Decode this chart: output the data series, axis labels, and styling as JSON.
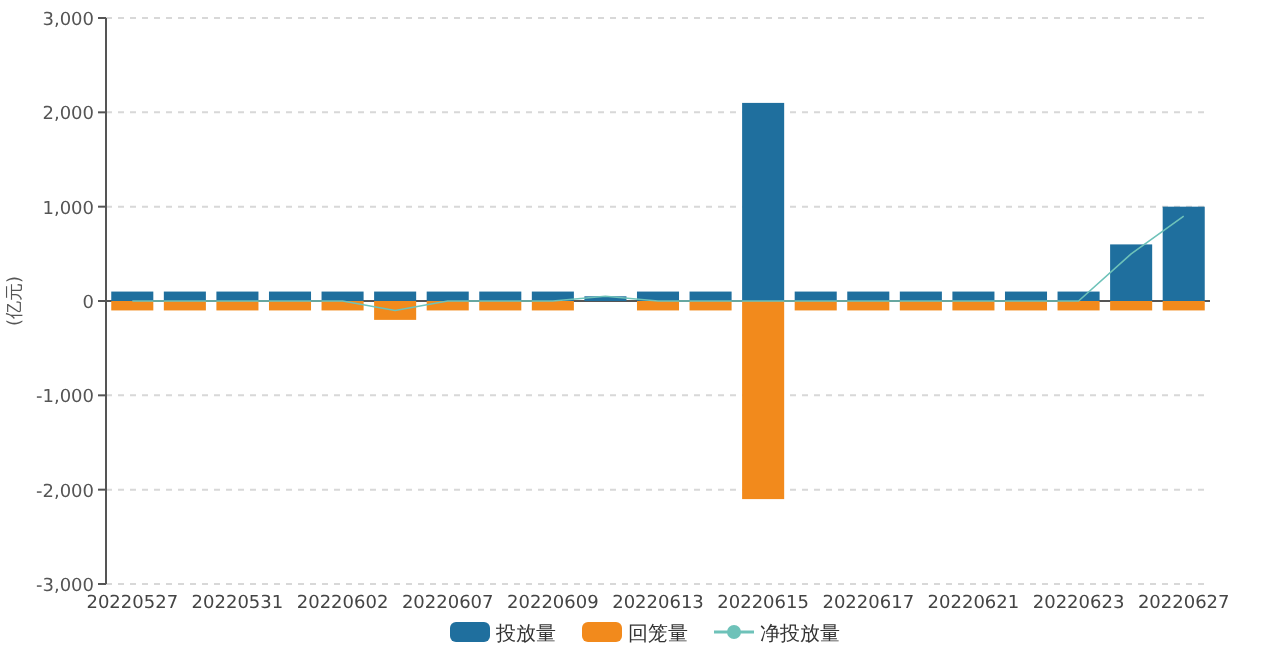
{
  "chart_data": {
    "type": "bar",
    "ylabel": "(亿元)",
    "stacked": true,
    "categories": [
      "20220527",
      null,
      "20220531",
      null,
      "20220602",
      null,
      "20220607",
      null,
      "20220609",
      null,
      "20220613",
      null,
      "20220615",
      null,
      "20220617",
      null,
      "20220621",
      null,
      "20220623",
      null,
      "20220627"
    ],
    "series": [
      {
        "name": "投放量",
        "color": "#1f6f9e",
        "values": [
          100,
          100,
          100,
          100,
          100,
          100,
          100,
          100,
          100,
          50,
          100,
          100,
          2100,
          100,
          100,
          100,
          100,
          100,
          100,
          600,
          1000
        ]
      },
      {
        "name": "回笼量",
        "color": "#f28a1c",
        "values": [
          -100,
          -100,
          -100,
          -100,
          -100,
          -200,
          -100,
          -100,
          -100,
          0,
          -100,
          -100,
          -2100,
          -100,
          -100,
          -100,
          -100,
          -100,
          -100,
          -100,
          -100
        ]
      },
      {
        "name": "净投放量",
        "type": "line",
        "color": "#6ec2b9",
        "marker": "none",
        "values": [
          0,
          0,
          0,
          0,
          0,
          -100,
          0,
          0,
          0,
          50,
          0,
          0,
          0,
          0,
          0,
          0,
          0,
          0,
          0,
          500,
          900
        ]
      }
    ],
    "ylim": [
      -3000,
      3000
    ],
    "yticks": [
      {
        "value": -3000,
        "label": "-3,000"
      },
      {
        "value": -2000,
        "label": "-2,000"
      },
      {
        "value": -1000,
        "label": "-1,000"
      },
      0,
      {
        "value": 1000,
        "label": "1,000"
      },
      {
        "value": 2000,
        "label": "2,000"
      },
      {
        "value": 3000,
        "label": "3,000"
      }
    ],
    "grid": "y",
    "legend": "bottom"
  }
}
